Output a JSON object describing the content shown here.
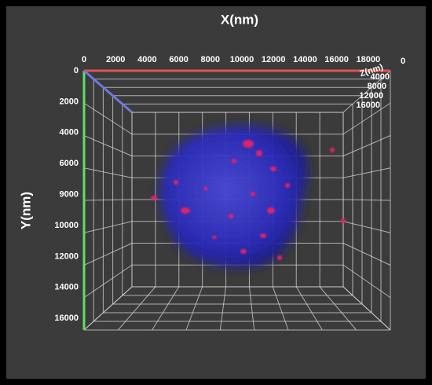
{
  "x_axis": {
    "label": "X(nm)",
    "ticks": [
      "0",
      "2000",
      "4000",
      "6000",
      "8000",
      "10000",
      "12000",
      "14000",
      "16000",
      "18000"
    ]
  },
  "y_axis": {
    "label": "Y(nm)",
    "ticks": [
      "0",
      "2000",
      "4000",
      "6000",
      "9000",
      "10000",
      "12000",
      "14000",
      "16000"
    ]
  },
  "z_axis": {
    "label": "Z(nm)",
    "ticks": [
      "0",
      "4000",
      "8000",
      "12000",
      "16000"
    ]
  }
}
